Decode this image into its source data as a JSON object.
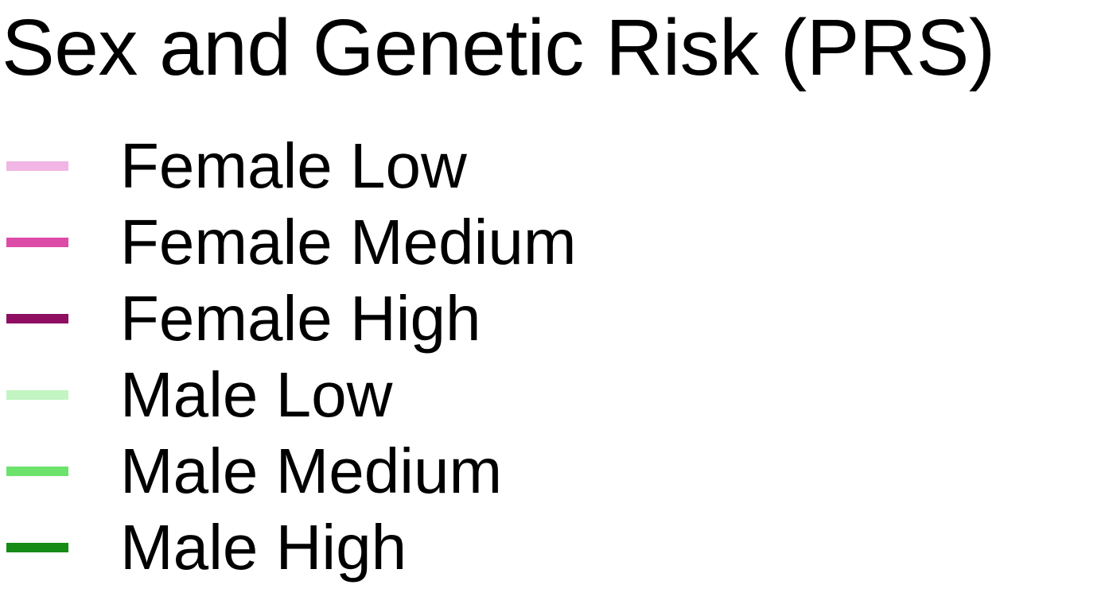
{
  "chart_data": {
    "type": "line",
    "legend_title": "Sex and Genetic Risk (PRS)",
    "legend_placement": "standalone",
    "series": [
      {
        "name": "Female Low",
        "color": "#F2B6E4"
      },
      {
        "name": "Female Medium",
        "color": "#DD4BA8"
      },
      {
        "name": "Female High",
        "color": "#8E0F62"
      },
      {
        "name": "Male Low",
        "color": "#C2F5C2"
      },
      {
        "name": "Male Medium",
        "color": "#6DE36D"
      },
      {
        "name": "Male High",
        "color": "#168C16"
      }
    ]
  }
}
